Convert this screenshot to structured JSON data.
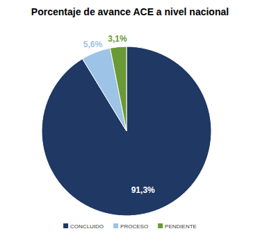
{
  "chart_data": {
    "type": "pie",
    "title": "Porcentaje de avance ACE a nivel nacional",
    "categories": [
      "CONCLUIDO",
      "PROCESO",
      "PENDIENTE"
    ],
    "values": [
      91.3,
      5.6,
      3.1
    ],
    "value_labels": [
      "91,3%",
      "5,6%",
      "3,1%"
    ],
    "colors": [
      "#1f3864",
      "#9dc3e6",
      "#6a9a35"
    ],
    "data_labels": true,
    "legend": "bottom"
  }
}
